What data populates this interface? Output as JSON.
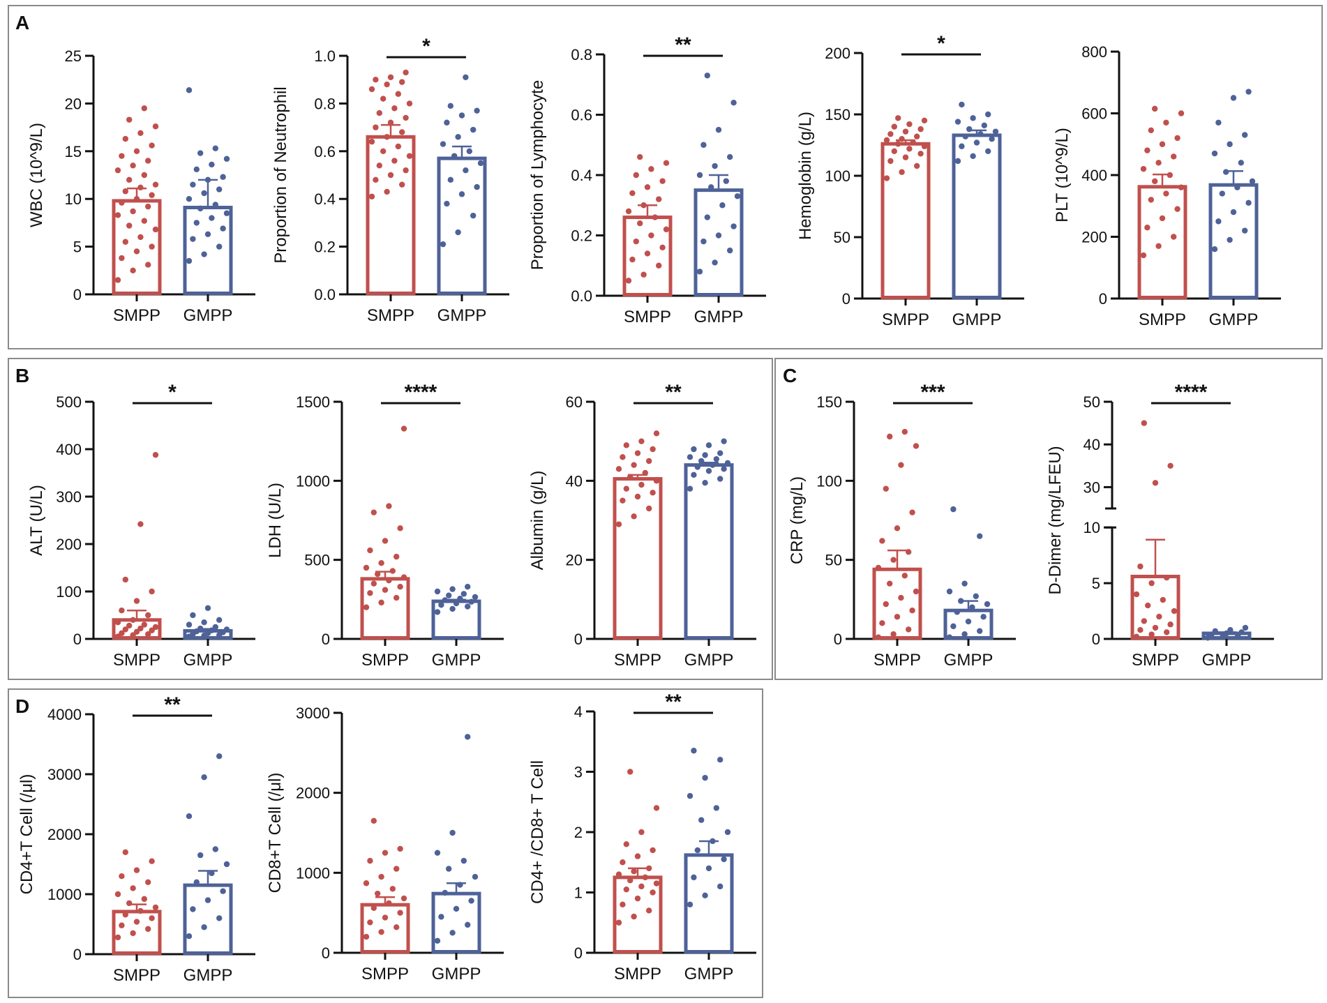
{
  "colors": {
    "smpp": "#C0504D",
    "gmpp": "#4E6298",
    "axis": "#111111",
    "frame": "#8a8a8a"
  },
  "panels": [
    {
      "label": "A"
    },
    {
      "label": "B"
    },
    {
      "label": "C"
    },
    {
      "label": "D"
    }
  ],
  "chart_data": [
    {
      "id": "wbc",
      "panel": "A",
      "type": "bar",
      "ylabel": "WBC  (10^9/L)",
      "categories": [
        "SMPP",
        "GMPP"
      ],
      "values": [
        9.8,
        9.1
      ],
      "errors": [
        1.3,
        2.9
      ],
      "ylim": [
        0,
        25
      ],
      "yticks": [
        0,
        5,
        10,
        15,
        20,
        25
      ],
      "significance": "",
      "points": [
        [
          1.5,
          2.5,
          3.1,
          3.8,
          4.5,
          5.0,
          5.5,
          6.0,
          6.8,
          7.2,
          7.7,
          8.3,
          8.7,
          9.2,
          9.6,
          10.0,
          10.4,
          10.8,
          11.2,
          11.5,
          12.0,
          12.5,
          13.0,
          13.5,
          14.0,
          14.5,
          15.0,
          15.6,
          16.3,
          16.9,
          17.6,
          18.3,
          19.5
        ],
        [
          3.5,
          4.2,
          5.0,
          5.8,
          6.3,
          6.9,
          7.5,
          8.0,
          8.5,
          9.0,
          9.4,
          10.0,
          10.6,
          11.0,
          11.5,
          12.0,
          12.3,
          13.1,
          13.6,
          14.2,
          14.8,
          15.3,
          21.4
        ]
      ]
    },
    {
      "id": "neutrophil",
      "panel": "A",
      "type": "bar",
      "ylabel": "Proportion of Neutrophil",
      "categories": [
        "SMPP",
        "GMPP"
      ],
      "values": [
        0.66,
        0.57
      ],
      "errors": [
        0.05,
        0.05
      ],
      "ylim": [
        0,
        1
      ],
      "yticks": [
        0.0,
        0.2,
        0.4,
        0.6,
        0.8,
        1.0
      ],
      "significance": "*",
      "points": [
        [
          0.41,
          0.43,
          0.46,
          0.48,
          0.5,
          0.52,
          0.54,
          0.56,
          0.58,
          0.6,
          0.62,
          0.64,
          0.66,
          0.68,
          0.7,
          0.72,
          0.74,
          0.76,
          0.78,
          0.8,
          0.82,
          0.84,
          0.86,
          0.88,
          0.89,
          0.9,
          0.91,
          0.93
        ],
        [
          0.21,
          0.26,
          0.33,
          0.38,
          0.42,
          0.45,
          0.48,
          0.52,
          0.55,
          0.58,
          0.6,
          0.63,
          0.66,
          0.69,
          0.72,
          0.75,
          0.77,
          0.79,
          0.91
        ]
      ]
    },
    {
      "id": "lymphocyte",
      "panel": "A",
      "type": "bar",
      "ylabel": "Proportion of Lymphocyte",
      "categories": [
        "SMPP",
        "GMPP"
      ],
      "values": [
        0.26,
        0.35
      ],
      "errors": [
        0.04,
        0.05
      ],
      "ylim": [
        0,
        0.8
      ],
      "yticks": [
        0.0,
        0.2,
        0.4,
        0.6,
        0.8
      ],
      "significance": "**",
      "points": [
        [
          0.05,
          0.07,
          0.1,
          0.12,
          0.14,
          0.16,
          0.18,
          0.2,
          0.22,
          0.24,
          0.26,
          0.28,
          0.3,
          0.32,
          0.34,
          0.36,
          0.38,
          0.4,
          0.42,
          0.44,
          0.46
        ],
        [
          0.08,
          0.11,
          0.15,
          0.18,
          0.2,
          0.23,
          0.26,
          0.3,
          0.33,
          0.36,
          0.38,
          0.4,
          0.43,
          0.46,
          0.5,
          0.55,
          0.64,
          0.73
        ]
      ]
    },
    {
      "id": "hemoglobin",
      "panel": "A",
      "type": "bar",
      "ylabel": "Hemoglobin (g/L)",
      "categories": [
        "SMPP",
        "GMPP"
      ],
      "values": [
        126,
        133
      ],
      "errors": [
        3,
        4
      ],
      "ylim": [
        0,
        200
      ],
      "yticks": [
        0,
        50,
        100,
        150,
        200
      ],
      "significance": "*",
      "points": [
        [
          98,
          103,
          108,
          112,
          115,
          118,
          120,
          122,
          124,
          126,
          127,
          129,
          130,
          132,
          134,
          136,
          138,
          140,
          142,
          145,
          147
        ],
        [
          112,
          116,
          120,
          124,
          127,
          130,
          132,
          134,
          136,
          138,
          141,
          144,
          147,
          150,
          158
        ]
      ]
    },
    {
      "id": "plt",
      "panel": "A",
      "type": "bar",
      "ylabel": "PLT (10^9/L)",
      "categories": [
        "SMPP",
        "GMPP"
      ],
      "values": [
        362,
        368
      ],
      "errors": [
        40,
        45
      ],
      "ylim": [
        0,
        800
      ],
      "yticks": [
        0,
        200,
        400,
        600,
        800
      ],
      "significance": "",
      "points": [
        [
          140,
          170,
          200,
          230,
          260,
          290,
          320,
          340,
          360,
          380,
          400,
          420,
          440,
          460,
          480,
          500,
          520,
          545,
          570,
          600,
          615
        ],
        [
          160,
          190,
          220,
          250,
          280,
          310,
          340,
          360,
          380,
          410,
          440,
          470,
          500,
          530,
          570,
          650,
          670
        ]
      ]
    },
    {
      "id": "alt",
      "panel": "B",
      "type": "bar",
      "ylabel": "ALT (U/L)",
      "categories": [
        "SMPP",
        "GMPP"
      ],
      "values": [
        40,
        17
      ],
      "errors": [
        20,
        4
      ],
      "ylim": [
        0,
        500
      ],
      "yticks": [
        0,
        100,
        200,
        300,
        400,
        500
      ],
      "significance": "*",
      "points": [
        [
          5,
          8,
          10,
          12,
          15,
          18,
          20,
          22,
          25,
          28,
          30,
          35,
          40,
          50,
          60,
          80,
          100,
          125,
          242,
          388
        ],
        [
          5,
          7,
          8,
          10,
          12,
          14,
          16,
          18,
          20,
          22,
          25,
          30,
          35,
          40,
          50,
          65
        ]
      ]
    },
    {
      "id": "ldh",
      "panel": "B",
      "type": "bar",
      "ylabel": "LDH (U/L)",
      "categories": [
        "SMPP",
        "GMPP"
      ],
      "values": [
        380,
        238
      ],
      "errors": [
        45,
        10
      ],
      "ylim": [
        0,
        1500
      ],
      "yticks": [
        0,
        500,
        1000,
        1500
      ],
      "significance": "****",
      "points": [
        [
          200,
          230,
          260,
          290,
          310,
          330,
          350,
          370,
          390,
          410,
          430,
          450,
          480,
          520,
          560,
          620,
          700,
          800,
          840,
          1330
        ],
        [
          170,
          190,
          205,
          215,
          225,
          235,
          245,
          255,
          265,
          275,
          285,
          300,
          315,
          330
        ]
      ]
    },
    {
      "id": "albumin",
      "panel": "B",
      "type": "bar",
      "ylabel": "Albumin (g/L)",
      "categories": [
        "SMPP",
        "GMPP"
      ],
      "values": [
        40.5,
        44
      ],
      "errors": [
        1,
        0.6
      ],
      "ylim": [
        0,
        60
      ],
      "yticks": [
        0,
        20,
        40,
        60
      ],
      "significance": "**",
      "points": [
        [
          29,
          31,
          33,
          35,
          36,
          37,
          38,
          39,
          40,
          41,
          42,
          43,
          44,
          45,
          46,
          47,
          48,
          49,
          50,
          52
        ],
        [
          38,
          39.5,
          40.5,
          41.5,
          42.5,
          43,
          43.5,
          44,
          44.5,
          45,
          45.5,
          46,
          46.5,
          47,
          48,
          49,
          50
        ]
      ]
    },
    {
      "id": "crp",
      "panel": "C",
      "type": "bar",
      "ylabel": "CRP (mg/L)",
      "categories": [
        "SMPP",
        "GMPP"
      ],
      "values": [
        44,
        18
      ],
      "errors": [
        12,
        6
      ],
      "ylim": [
        0,
        150
      ],
      "yticks": [
        0,
        50,
        100,
        150
      ],
      "significance": "***",
      "points": [
        [
          1,
          3,
          6,
          10,
          14,
          18,
          22,
          26,
          30,
          35,
          40,
          45,
          50,
          55,
          62,
          70,
          80,
          95,
          110,
          122,
          128,
          131
        ],
        [
          1,
          3,
          5,
          8,
          11,
          14,
          17,
          20,
          22,
          24,
          27,
          30,
          35,
          65,
          82
        ]
      ]
    },
    {
      "id": "ddimer",
      "panel": "C",
      "type": "bar",
      "ylabel": "D-Dimer (mg/LFEU)",
      "categories": [
        "SMPP",
        "GMPP"
      ],
      "values": [
        5.6,
        0.5
      ],
      "errors": [
        3.3,
        0.1
      ],
      "ylim": [
        0,
        50
      ],
      "yticks": [
        0,
        5,
        10,
        30,
        40,
        50
      ],
      "axis_break": [
        10,
        25
      ],
      "significance": "****",
      "points": [
        [
          0.2,
          0.4,
          0.6,
          0.8,
          1.0,
          1.3,
          1.6,
          2.0,
          2.5,
          3.0,
          3.5,
          4.0,
          5.0,
          5.5,
          6.5,
          31,
          35,
          45
        ],
        [
          0.1,
          0.2,
          0.3,
          0.4,
          0.5,
          0.6,
          0.7,
          0.8,
          1.0
        ]
      ]
    },
    {
      "id": "cd4",
      "panel": "D",
      "type": "bar",
      "ylabel": "CD4+T Cell (/μl)",
      "categories": [
        "SMPP",
        "GMPP"
      ],
      "values": [
        710,
        1150
      ],
      "errors": [
        120,
        240
      ],
      "ylim": [
        0,
        4000
      ],
      "yticks": [
        0,
        1000,
        2000,
        3000,
        4000
      ],
      "significance": "**",
      "points": [
        [
          280,
          350,
          420,
          480,
          540,
          600,
          660,
          720,
          780,
          850,
          920,
          1000,
          1100,
          1200,
          1300,
          1400,
          1550,
          1700
        ],
        [
          300,
          450,
          600,
          750,
          900,
          1050,
          1200,
          1350,
          1500,
          1650,
          1750,
          2300,
          2950,
          3300
        ]
      ]
    },
    {
      "id": "cd8",
      "panel": "D",
      "type": "bar",
      "ylabel": "CD8+T Cell (/μl)",
      "categories": [
        "SMPP",
        "GMPP"
      ],
      "values": [
        600,
        740
      ],
      "errors": [
        95,
        130
      ],
      "ylim": [
        0,
        3000
      ],
      "yticks": [
        0,
        1000,
        2000,
        3000
      ],
      "significance": "",
      "points": [
        [
          200,
          260,
          320,
          380,
          440,
          500,
          560,
          620,
          680,
          740,
          800,
          870,
          950,
          1050,
          1150,
          1250,
          1300,
          1650
        ],
        [
          150,
          250,
          350,
          450,
          550,
          650,
          750,
          850,
          950,
          1050,
          1150,
          1250,
          1500,
          2700
        ]
      ]
    },
    {
      "id": "cd4cd8",
      "panel": "D",
      "type": "bar",
      "ylabel": "CD4+ /CD8+ T Cell",
      "categories": [
        "SMPP",
        "GMPP"
      ],
      "values": [
        1.25,
        1.62
      ],
      "errors": [
        0.15,
        0.23
      ],
      "ylim": [
        0,
        4
      ],
      "yticks": [
        0,
        1,
        2,
        3,
        4
      ],
      "significance": "**",
      "points": [
        [
          0.5,
          0.6,
          0.7,
          0.8,
          0.9,
          1.0,
          1.05,
          1.1,
          1.15,
          1.2,
          1.25,
          1.3,
          1.35,
          1.4,
          1.5,
          1.6,
          1.7,
          1.8,
          2.0,
          2.4,
          3.0
        ],
        [
          0.8,
          0.95,
          1.1,
          1.25,
          1.4,
          1.55,
          1.7,
          1.85,
          2.0,
          2.2,
          2.4,
          2.6,
          2.9,
          3.2,
          3.35
        ]
      ]
    }
  ]
}
